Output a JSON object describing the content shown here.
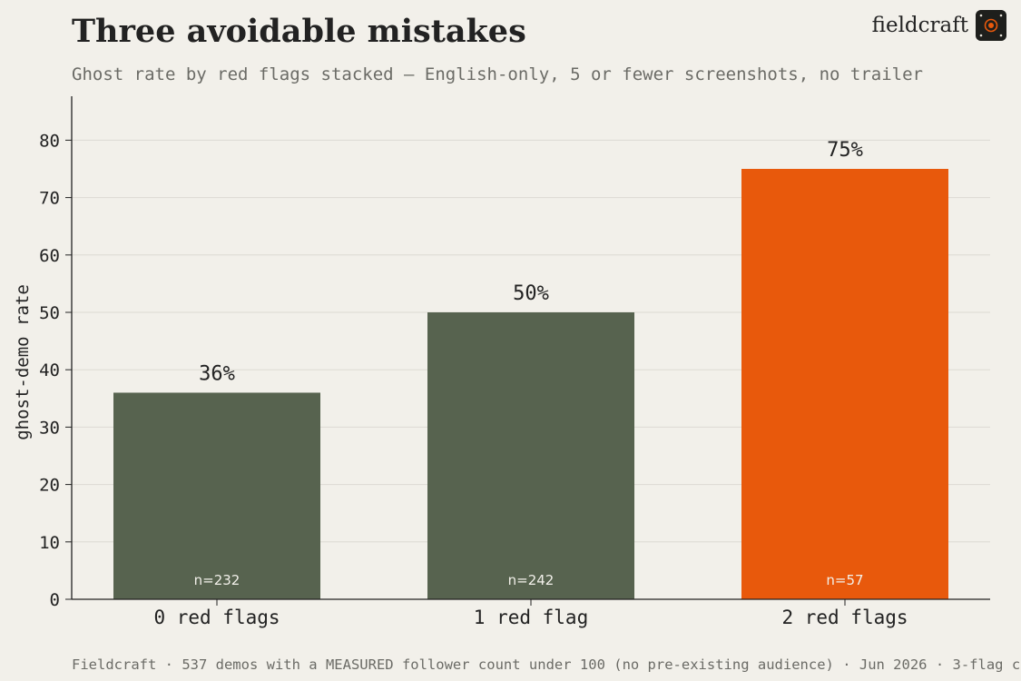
{
  "header": {
    "title": "Three avoidable mistakes",
    "subtitle": "Ghost rate by red flags stacked — English-only, 5 or fewer screenshots, no trailer"
  },
  "brand": {
    "name": "fieldcraft",
    "logo_icon": "target-dots-icon"
  },
  "footer": {
    "note": "Fieldcraft · 537 demos with a MEASURED follower count under 100 (no pre-existing audience) · Jun 2026 · 3-flag c"
  },
  "colors": {
    "background": "#f2f0ea",
    "bar_default": "#57634f",
    "bar_highlight": "#e8590c",
    "axis": "#222222",
    "grid": "#dcdad3",
    "muted_text": "#6b6b66"
  },
  "chart_data": {
    "type": "bar",
    "categories": [
      "0 red flags",
      "1 red flag",
      "2 red flags"
    ],
    "values": [
      36,
      50,
      75
    ],
    "value_labels": [
      "36%",
      "50%",
      "75%"
    ],
    "sample_sizes": [
      "n=232",
      "n=242",
      "n=57"
    ],
    "highlight_index": 2,
    "xlabel": "",
    "ylabel": "ghost-demo rate",
    "ylim": [
      0,
      88
    ],
    "yticks": [
      0,
      10,
      20,
      30,
      40,
      50,
      60,
      70,
      80
    ],
    "grid": true,
    "legend": "none"
  }
}
